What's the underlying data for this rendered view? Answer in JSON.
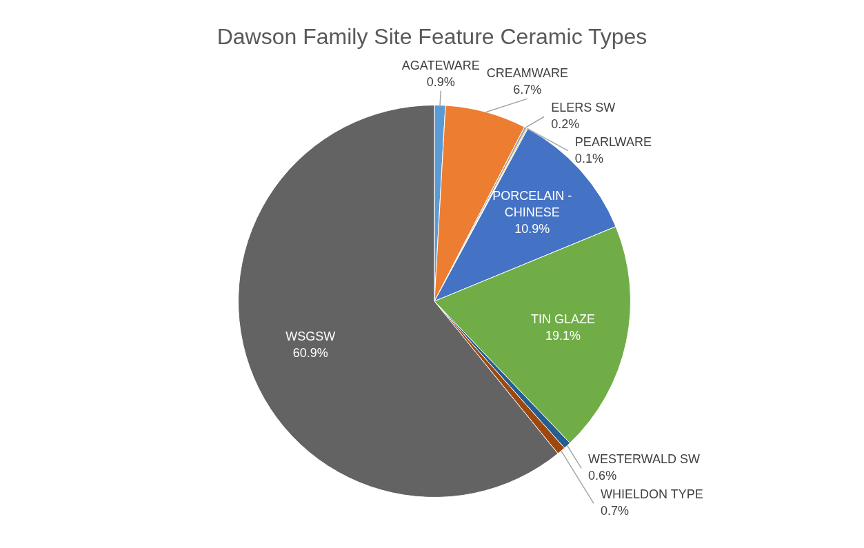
{
  "chart_data": {
    "type": "pie",
    "title": "Dawson Family Site Feature Ceramic Types",
    "categories": [
      "AGATEWARE",
      "CREAMWARE",
      "ELERS SW",
      "PEARLWARE",
      "PORCELAIN - CHINESE",
      "TIN GLAZE",
      "WESTERWALD SW",
      "WHIELDON TYPE",
      "WSGSW"
    ],
    "values": [
      0.9,
      6.7,
      0.2,
      0.1,
      10.9,
      19.1,
      0.6,
      0.7,
      60.9
    ],
    "value_labels": [
      "0.9%",
      "6.7%",
      "0.2%",
      "0.1%",
      "10.9%",
      "19.1%",
      "0.6%",
      "0.7%",
      "60.9%"
    ],
    "colors": [
      "#5b9bd5",
      "#ed7d31",
      "#a5a5a5",
      "#ffc000",
      "#4472c4",
      "#70ad47",
      "#255e91",
      "#9e480e",
      "#636363"
    ],
    "legend": false
  }
}
